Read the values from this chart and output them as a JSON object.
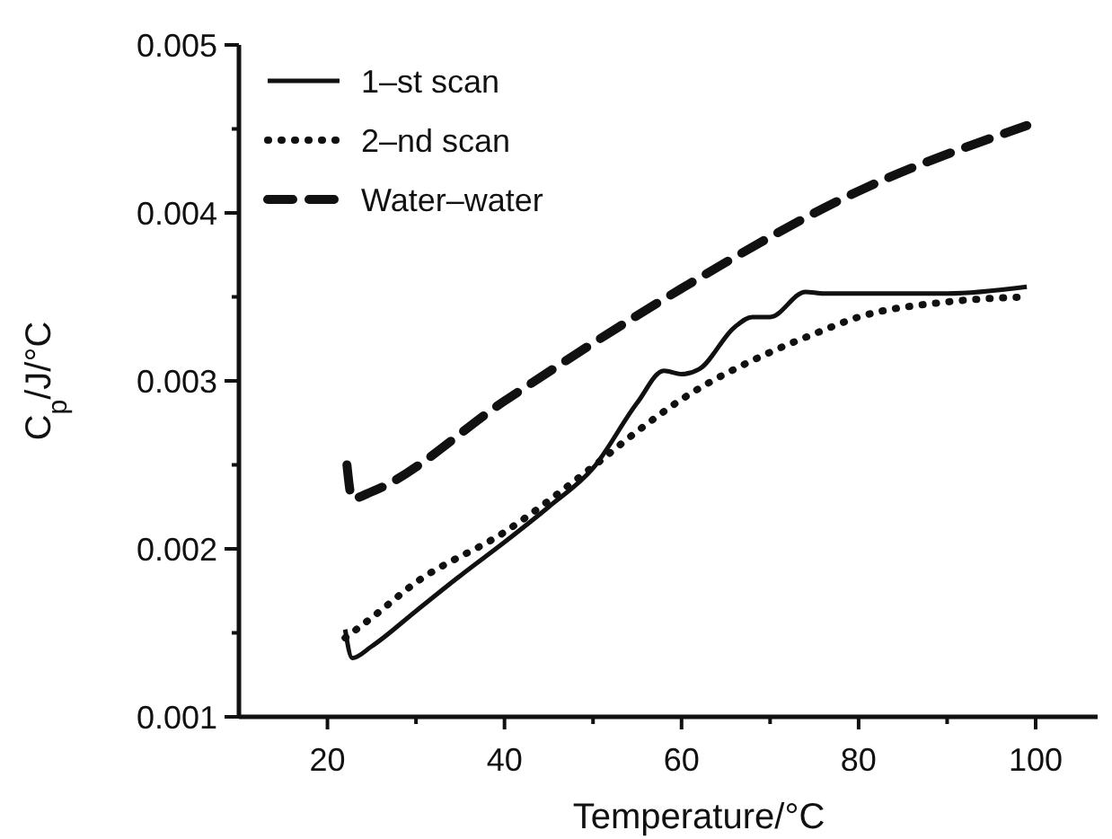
{
  "chart_data": {
    "type": "line",
    "xlabel": "Temperature/°C",
    "ylabel": "C$_{p}$/J/°C",
    "xlim": [
      10,
      107
    ],
    "ylim": [
      0.001,
      0.005
    ],
    "xticks": [
      20,
      {
        "value": 30,
        "label": null
      },
      40,
      {
        "value": 50,
        "label": null
      },
      60,
      {
        "value": 70,
        "label": null
      },
      80,
      {
        "value": 90,
        "label": null
      },
      100
    ],
    "yticks": [
      0.001,
      {
        "value": 0.0015,
        "label": null
      },
      0.002,
      {
        "value": 0.0025,
        "label": null
      },
      0.003,
      {
        "value": 0.0035,
        "label": null
      },
      0.004,
      {
        "value": 0.0045,
        "label": null
      },
      0.005
    ],
    "legend": "top left",
    "grid": false,
    "marker": "none",
    "series": [
      {
        "name": "1–st scan",
        "color": "#111111",
        "line_style": "solid",
        "x": [
          22,
          22.8,
          25,
          30,
          35,
          40,
          45,
          50,
          55,
          58,
          60,
          62,
          66,
          68,
          70,
          74,
          76,
          90,
          99
        ],
        "values": [
          0.00152,
          0.00135,
          0.00142,
          0.00163,
          0.00184,
          0.00204,
          0.00225,
          0.00248,
          0.00287,
          0.00306,
          0.00304,
          0.00307,
          0.00332,
          0.00338,
          0.00338,
          0.00353,
          0.00352,
          0.00352,
          0.00356
        ]
      },
      {
        "name": "2–nd scan",
        "color": "#111111",
        "line_style": "dotted",
        "x": [
          22,
          25,
          30,
          40,
          50,
          55,
          60,
          70,
          75,
          80,
          90,
          99
        ],
        "values": [
          0.00147,
          0.00159,
          0.0018,
          0.0021,
          0.00249,
          0.0027,
          0.00289,
          0.00317,
          0.00328,
          0.00338,
          0.00347,
          0.0035
        ]
      },
      {
        "name": "Water–water",
        "color": "#111111",
        "line_style": "dashed",
        "x": [
          22.2,
          22.8,
          25,
          40,
          60,
          80,
          99
        ],
        "values": [
          0.0025,
          0.0023,
          0.00234,
          0.00288,
          0.00355,
          0.00413,
          0.00452
        ]
      }
    ]
  }
}
